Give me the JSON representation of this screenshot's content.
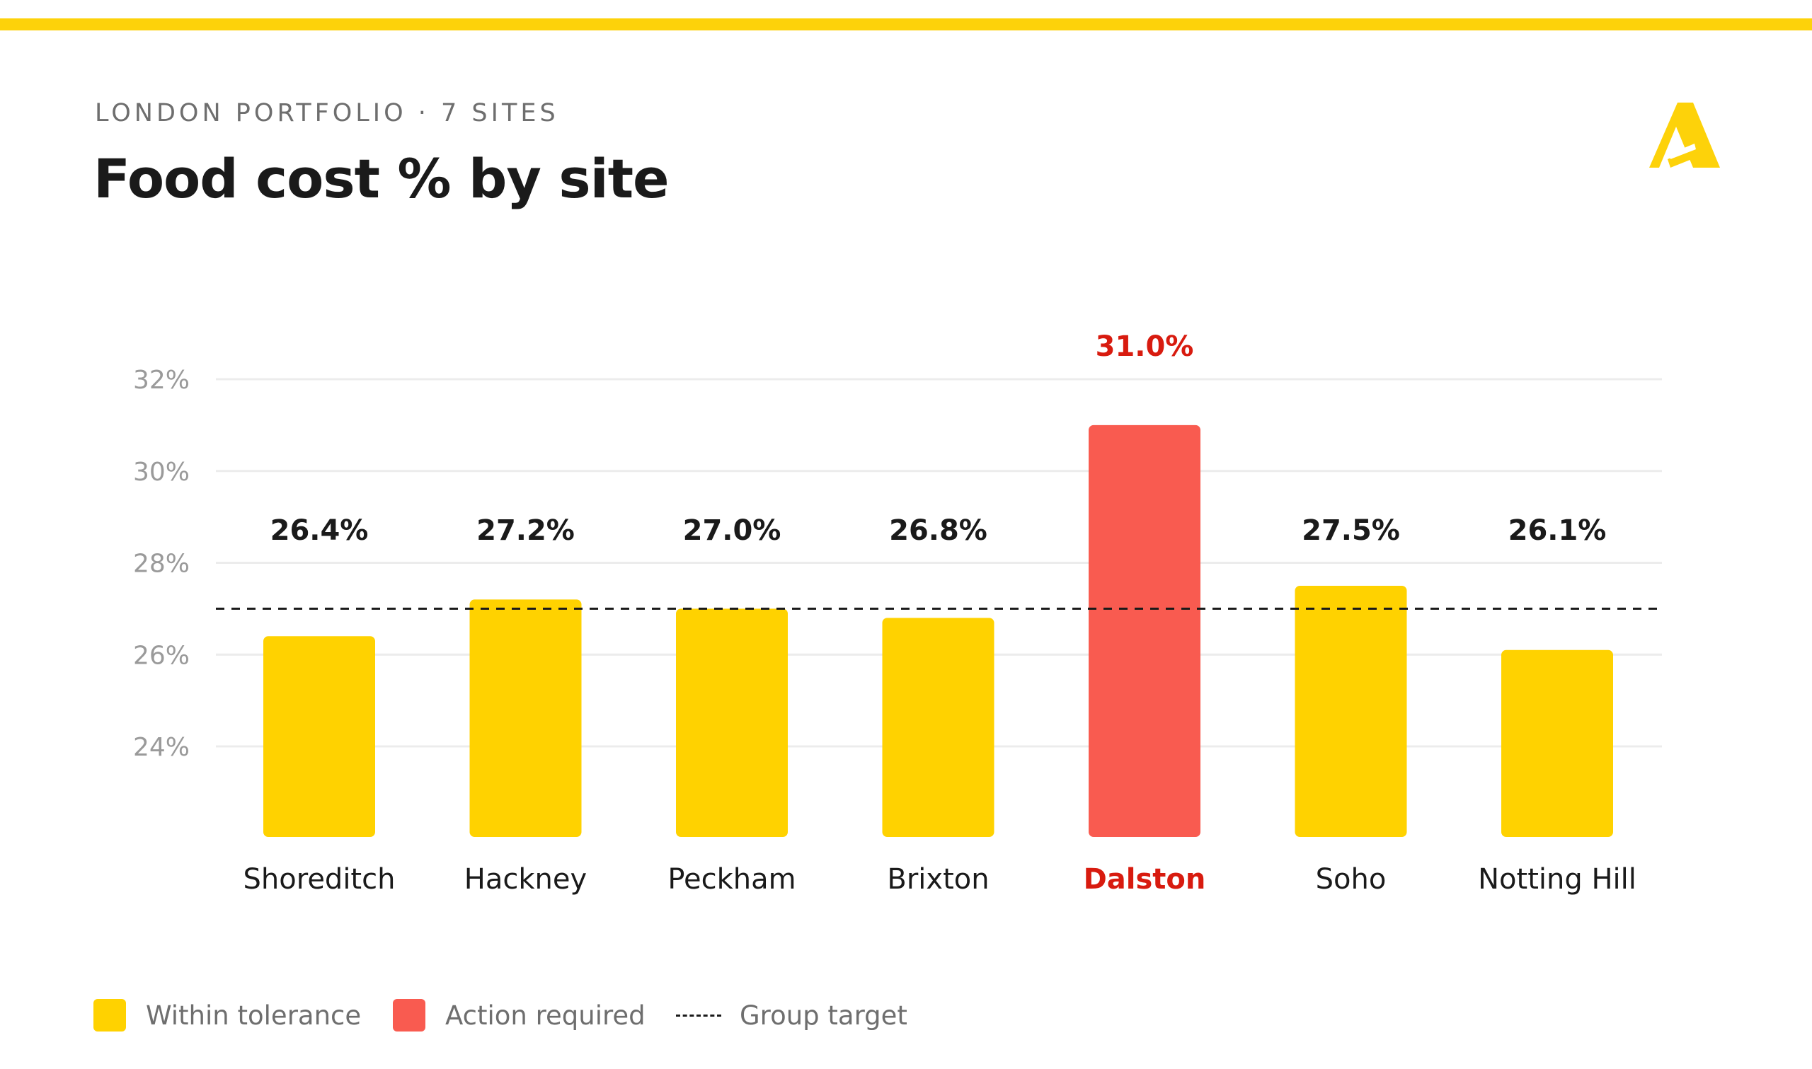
{
  "header": {
    "eyebrow": "LONDON PORTFOLIO · 7 SITES",
    "title": "Food cost % by site",
    "logo_icon": "brand-a-icon"
  },
  "colors": {
    "accent": "#FDD20A",
    "bar_ok": "#FFD200",
    "bar_alert": "#F95B50",
    "alert_text": "#D81B0F",
    "label_dark": "#1a1a1a",
    "tick_gray": "#9a9a9a",
    "grid": "#ececec"
  },
  "chart_data": {
    "type": "bar",
    "title": "Food cost % by site",
    "categories": [
      "Shoreditch",
      "Hackney",
      "Peckham",
      "Brixton",
      "Dalston",
      "Soho",
      "Notting Hill"
    ],
    "values": [
      26.4,
      27.2,
      27.0,
      26.8,
      31.0,
      27.5,
      26.1
    ],
    "value_labels": [
      "26.4%",
      "27.2%",
      "27.0%",
      "26.8%",
      "31.0%",
      "27.5%",
      "26.1%"
    ],
    "status": [
      "ok",
      "ok",
      "ok",
      "ok",
      "alert",
      "ok",
      "ok"
    ],
    "target": 27.0,
    "yticks": [
      24,
      26,
      28,
      30,
      32
    ],
    "ytick_labels": [
      "24%",
      "26%",
      "28%",
      "30%",
      "32%"
    ],
    "ylim": [
      22,
      32
    ],
    "xlabel": "",
    "ylabel": "",
    "grid": true
  },
  "legend": {
    "within": "Within tolerance",
    "action": "Action required",
    "target": "Group target"
  }
}
